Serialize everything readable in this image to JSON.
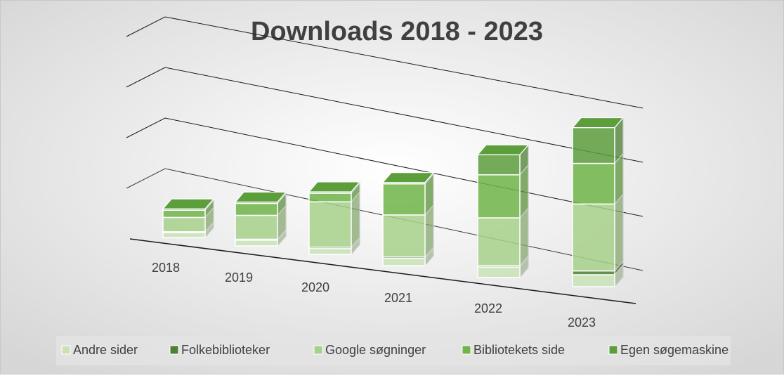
{
  "chart_data": {
    "type": "bar3d_stacked",
    "title": "Downloads 2018 - 2023",
    "categories": [
      "2018",
      "2019",
      "2020",
      "2021",
      "2022",
      "2023"
    ],
    "series": [
      {
        "name": "Andre sider",
        "color": "#c9e3b6",
        "values": [
          10,
          12,
          12,
          15,
          22,
          25
        ]
      },
      {
        "name": "Folkebiblioteker",
        "color": "#4f7f32",
        "values": [
          2,
          2,
          3,
          3,
          3,
          8
        ]
      },
      {
        "name": "Google søgninger",
        "color": "#a7d08a",
        "values": [
          30,
          50,
          95,
          88,
          100,
          140
        ]
      },
      {
        "name": "Bibliotekets side",
        "color": "#6fb548",
        "values": [
          15,
          25,
          18,
          65,
          90,
          85
        ]
      },
      {
        "name": "Egen søgemaskine",
        "color": "#5c9e3c",
        "values": [
          3,
          3,
          3,
          3,
          42,
          75
        ]
      }
    ],
    "ylim": [
      0,
      400
    ],
    "yticks": [
      0,
      100,
      200,
      300
    ],
    "grid": true
  }
}
